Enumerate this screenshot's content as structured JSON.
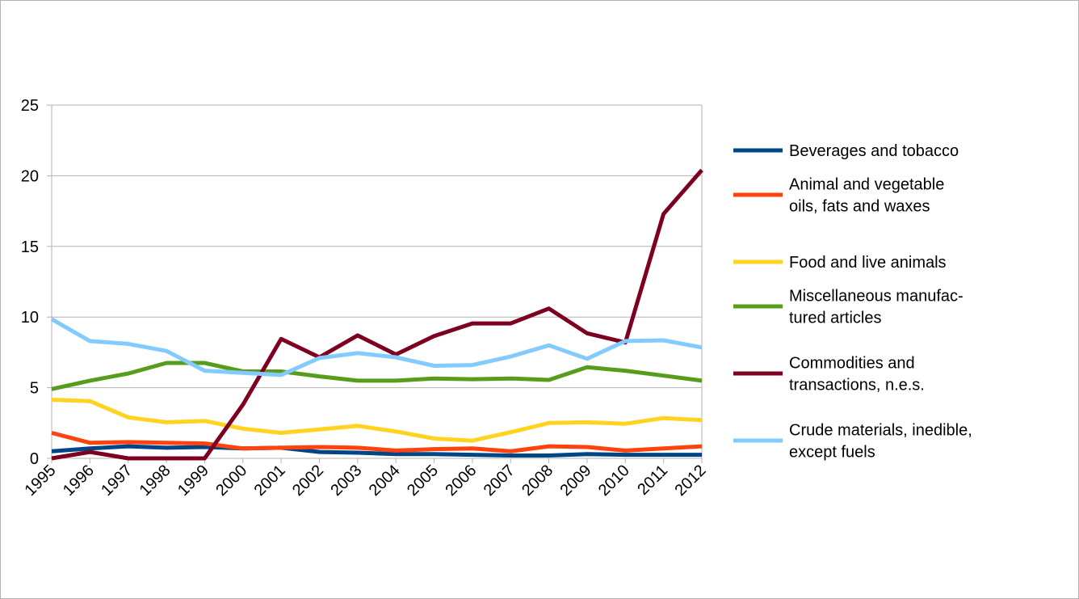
{
  "chart_data": {
    "type": "line",
    "title": "",
    "xlabel": "",
    "ylabel": "",
    "ylim": [
      0,
      25
    ],
    "yticks": [
      "0",
      "5",
      "10",
      "15",
      "20",
      "25"
    ],
    "grid": "horizontal",
    "legend": "right",
    "categories": [
      "1995",
      "1996",
      "1997",
      "1998",
      "1999",
      "2000",
      "2001",
      "2002",
      "2003",
      "2004",
      "2005",
      "2006",
      "2007",
      "2008",
      "2009",
      "2010",
      "2011",
      "2012"
    ],
    "series": [
      {
        "name": "Beverages and tobacco",
        "label_lines": [
          "Beverages and tobacco"
        ],
        "color": "#004586",
        "values": [
          0.5,
          0.7,
          0.85,
          0.75,
          0.8,
          0.7,
          0.75,
          0.45,
          0.4,
          0.3,
          0.3,
          0.25,
          0.2,
          0.2,
          0.3,
          0.25,
          0.25,
          0.25
        ]
      },
      {
        "name": "Animal and vegetable oils, fats and waxes",
        "label_lines": [
          "Animal and vegetable",
          "oils, fats and waxes"
        ],
        "color": "#ff420e",
        "values": [
          1.8,
          1.1,
          1.15,
          1.1,
          1.05,
          0.7,
          0.75,
          0.8,
          0.75,
          0.55,
          0.65,
          0.7,
          0.5,
          0.85,
          0.8,
          0.55,
          0.7,
          0.85
        ]
      },
      {
        "name": "Food and live animals",
        "label_lines": [
          "Food and live animals"
        ],
        "color": "#ffd320",
        "values": [
          4.15,
          4.05,
          2.9,
          2.55,
          2.65,
          2.1,
          1.8,
          2.05,
          2.3,
          1.9,
          1.4,
          1.25,
          1.85,
          2.5,
          2.55,
          2.45,
          2.85,
          2.7
        ]
      },
      {
        "name": "Miscellaneous manufactured articles",
        "label_lines": [
          "Miscellaneous manufac-",
          "tured articles"
        ],
        "color": "#579d1c",
        "values": [
          4.9,
          5.5,
          6.0,
          6.75,
          6.75,
          6.15,
          6.15,
          5.8,
          5.5,
          5.5,
          5.65,
          5.6,
          5.65,
          5.55,
          6.45,
          6.2,
          5.85,
          5.5
        ]
      },
      {
        "name": "Commodities and transactions, n.e.s.",
        "label_lines": [
          "Commodities and",
          "transactions, n.e.s."
        ],
        "color": "#7e0021",
        "values": [
          0.0,
          0.45,
          0.0,
          0.0,
          0.0,
          3.8,
          8.45,
          7.15,
          8.7,
          7.35,
          8.65,
          9.55,
          9.55,
          10.6,
          8.85,
          8.2,
          17.3,
          20.4
        ]
      },
      {
        "name": "Crude materials, inedible, except fuels",
        "label_lines": [
          "Crude materials, inedible,",
          "except fuels"
        ],
        "color": "#83caff",
        "values": [
          9.85,
          8.3,
          8.1,
          7.6,
          6.2,
          6.05,
          5.9,
          7.1,
          7.45,
          7.15,
          6.55,
          6.6,
          7.2,
          8.0,
          7.05,
          8.3,
          8.35,
          7.85
        ]
      }
    ]
  }
}
